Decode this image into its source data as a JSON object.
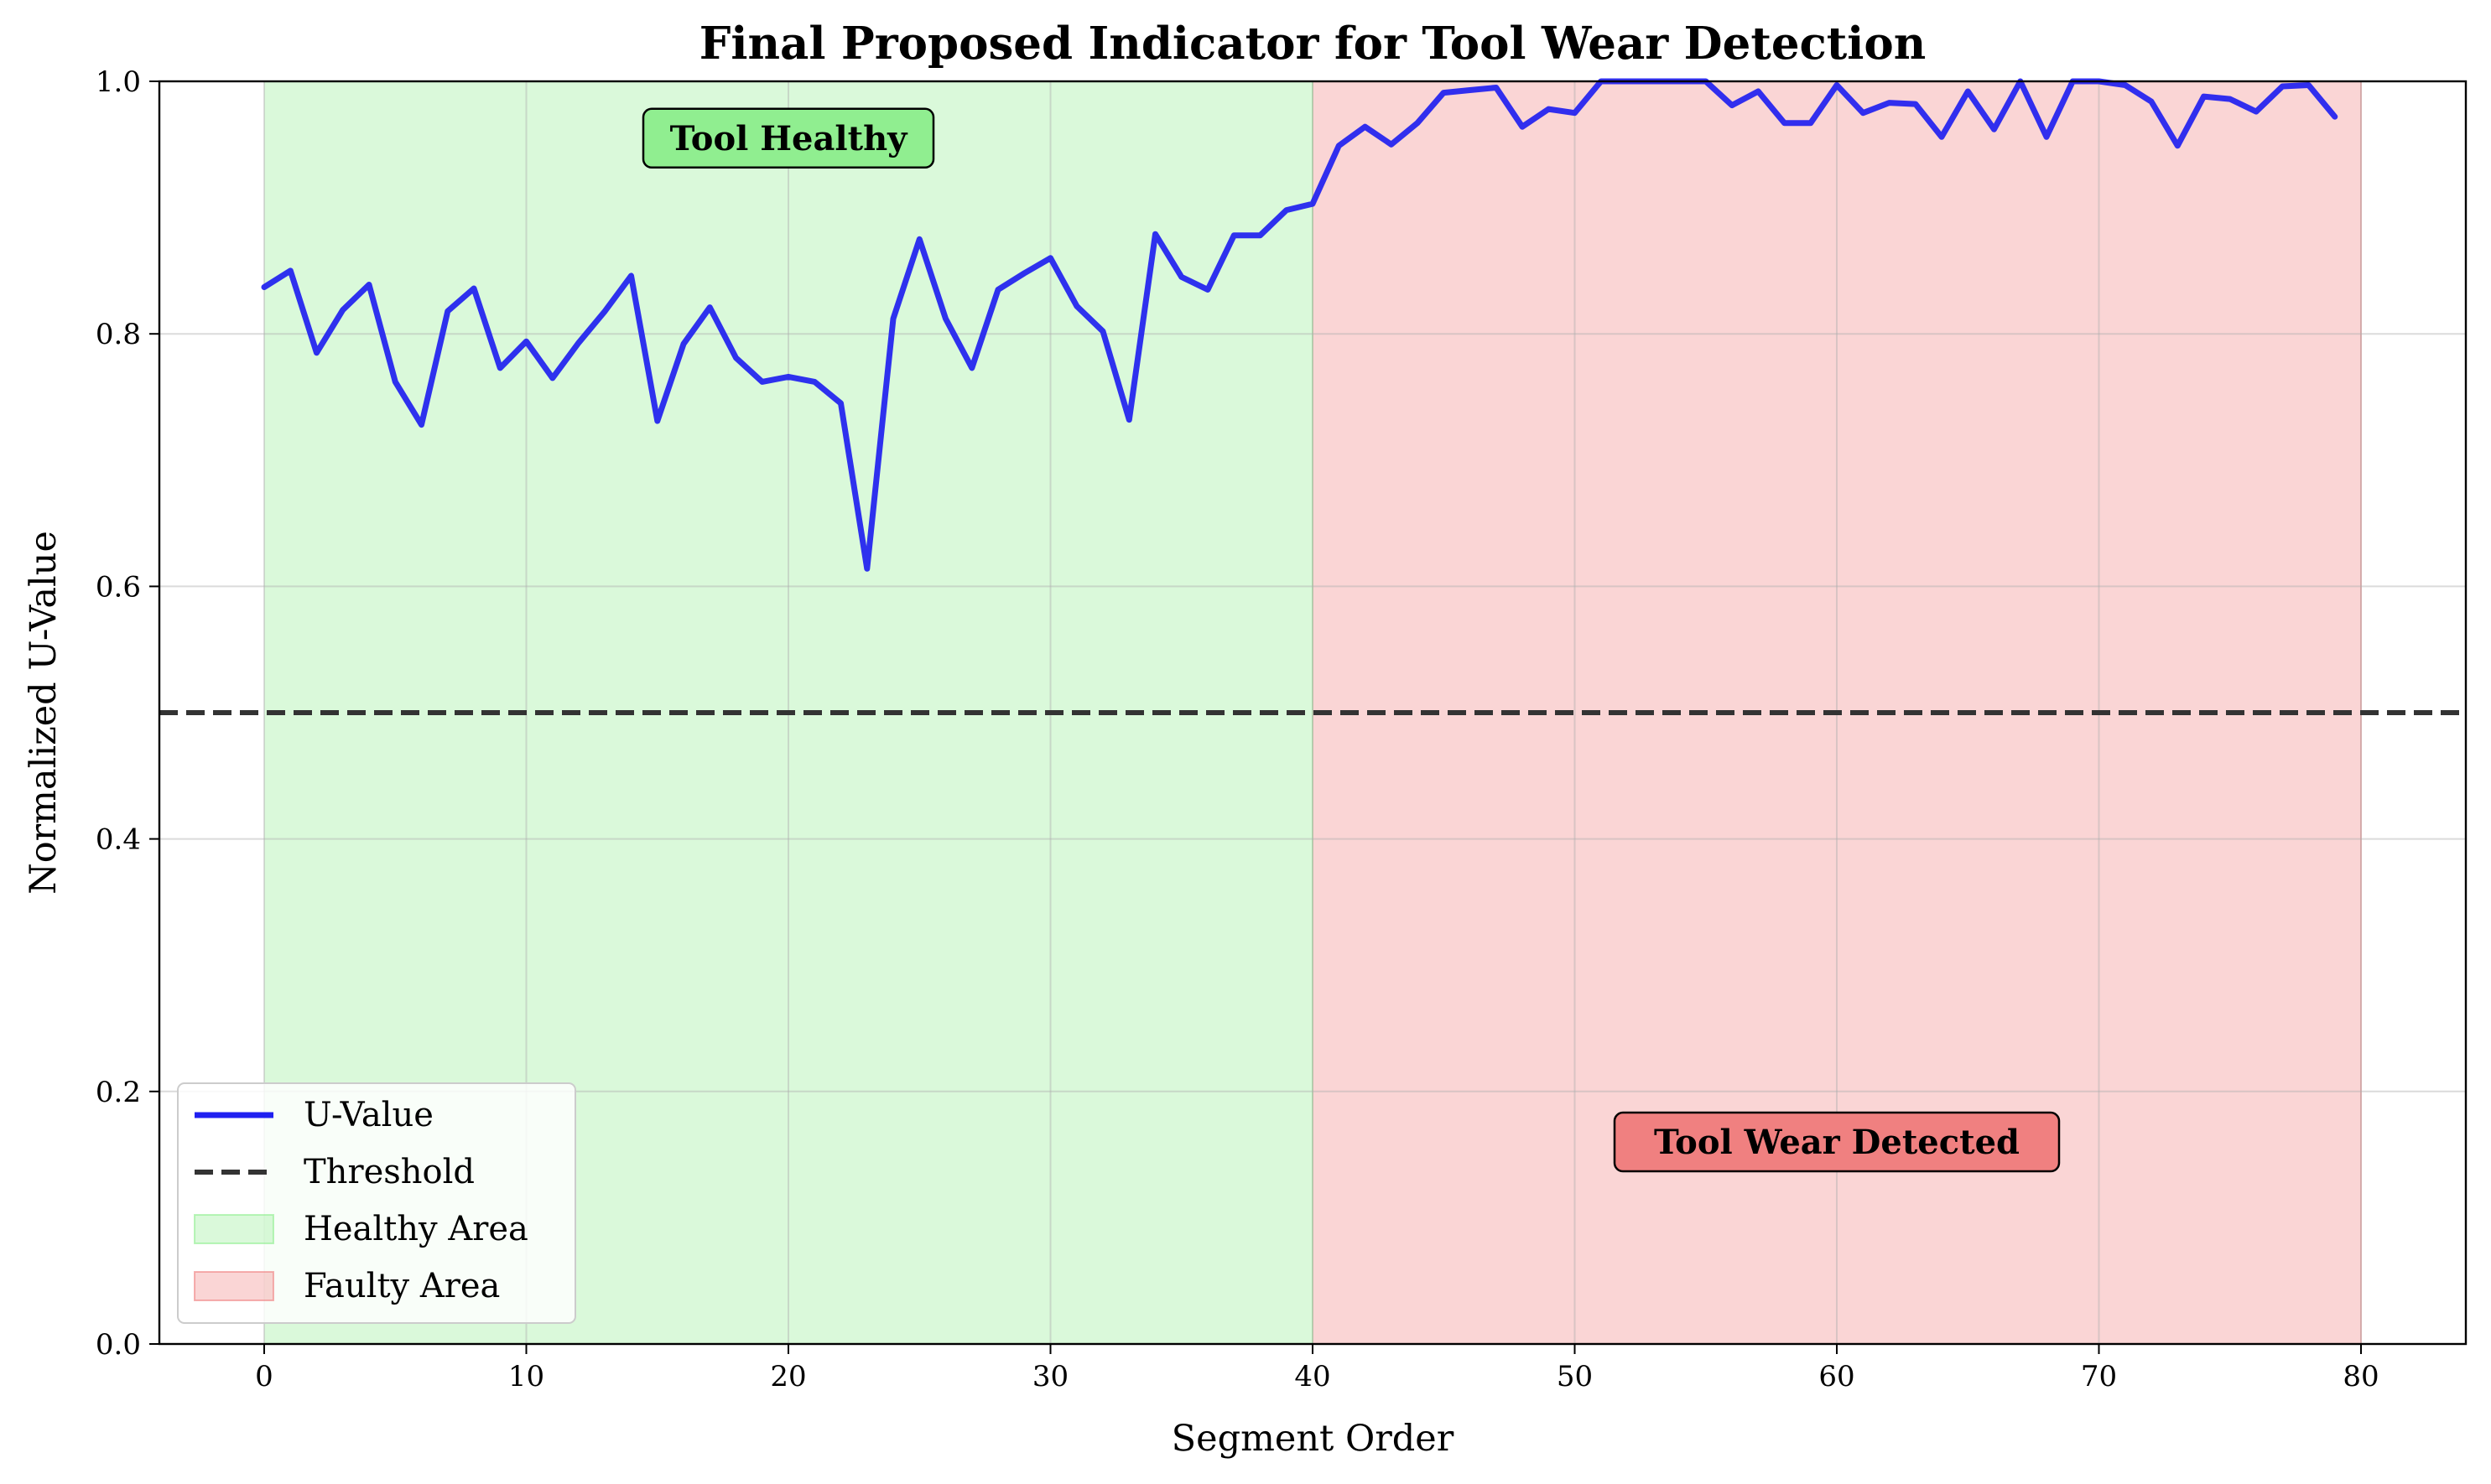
{
  "chart_data": {
    "type": "line",
    "title": "Final Proposed Indicator for Tool Wear Detection",
    "xlabel": "Segment Order",
    "ylabel": "Normalized U-Value",
    "xlim": [
      -4,
      84
    ],
    "ylim": [
      0,
      1
    ],
    "xticks": [
      0,
      10,
      20,
      30,
      40,
      50,
      60,
      70,
      80
    ],
    "yticks": [
      0.0,
      0.2,
      0.4,
      0.6,
      0.8,
      1.0
    ],
    "xtick_labels": [
      "0",
      "10",
      "20",
      "30",
      "40",
      "50",
      "60",
      "70",
      "80"
    ],
    "ytick_labels": [
      "0.0",
      "0.2",
      "0.4",
      "0.6",
      "0.8",
      "1.0"
    ],
    "grid": true,
    "legend_position": "lower-left",
    "series": [
      {
        "name": "U-Value",
        "color": "#2020f0",
        "x": [
          0,
          1,
          2,
          3,
          4,
          5,
          6,
          7,
          8,
          9,
          10,
          11,
          12,
          13,
          14,
          15,
          16,
          17,
          18,
          19,
          20,
          21,
          22,
          23,
          24,
          25,
          26,
          27,
          28,
          29,
          30,
          31,
          32,
          33,
          34,
          35,
          36,
          37,
          38,
          39,
          40,
          41,
          42,
          43,
          44,
          45,
          46,
          47,
          48,
          49,
          50,
          51,
          52,
          53,
          54,
          55,
          56,
          57,
          58,
          59,
          60,
          61,
          62,
          63,
          64,
          65,
          66,
          67,
          68,
          69,
          70,
          71,
          72,
          73,
          74,
          75,
          76,
          77,
          78,
          79
        ],
        "values": [
          0.837,
          0.85,
          0.785,
          0.819,
          0.839,
          0.762,
          0.728,
          0.818,
          0.836,
          0.773,
          0.794,
          0.765,
          0.793,
          0.818,
          0.846,
          0.731,
          0.792,
          0.821,
          0.781,
          0.762,
          0.766,
          0.762,
          0.745,
          0.614,
          0.812,
          0.875,
          0.812,
          0.773,
          0.835,
          0.848,
          0.86,
          0.822,
          0.802,
          0.732,
          0.879,
          0.845,
          0.835,
          0.878,
          0.878,
          0.898,
          0.903,
          0.949,
          0.964,
          0.95,
          0.967,
          0.991,
          0.993,
          0.995,
          0.964,
          0.978,
          0.975,
          1.0,
          1.0,
          1.0,
          1.0,
          1.0,
          0.981,
          0.992,
          0.967,
          0.967,
          0.997,
          0.975,
          0.983,
          0.982,
          0.956,
          0.992,
          0.962,
          1.0,
          0.956,
          1.0,
          1.0,
          0.997,
          0.984,
          0.949,
          0.988,
          0.986,
          0.976,
          0.996,
          0.997,
          0.972
        ]
      },
      {
        "name": "Threshold",
        "color": "#333333",
        "style": "dashed",
        "value": 0.5
      }
    ],
    "regions": [
      {
        "name": "Healthy Area",
        "x_start": 0,
        "x_end": 40,
        "color": "#90ee90"
      },
      {
        "name": "Faulty Area",
        "x_start": 40,
        "x_end": 80,
        "color": "#f08080"
      }
    ],
    "annotations": [
      {
        "text": "Tool Healthy",
        "x": 20,
        "y": 0.955,
        "color": "#90ee90"
      },
      {
        "text": "Tool Wear Detected",
        "x": 60,
        "y": 0.16,
        "color": "#f08080"
      }
    ]
  }
}
